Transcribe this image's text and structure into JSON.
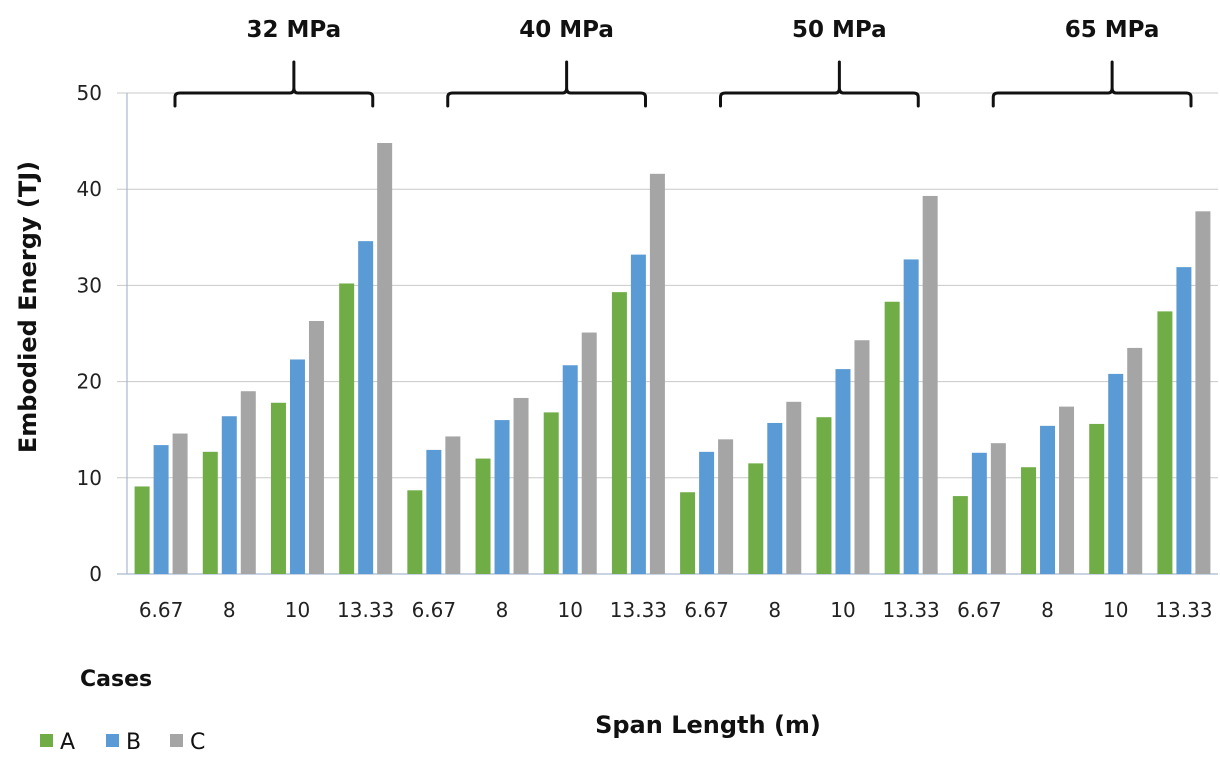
{
  "chart_data": {
    "type": "bar",
    "ylabel": "Embodied Energy (TJ)",
    "xlabel": "Span Length (m)",
    "ylim": [
      0,
      50
    ],
    "yticks": [
      0,
      10,
      20,
      30,
      40,
      50
    ],
    "grid": true,
    "legend_title": "Cases",
    "legend_position": "bottom-left",
    "group_labels": [
      "32 MPa",
      "40 MPa",
      "50 MPa",
      "65 MPa"
    ],
    "categories": [
      "6.67",
      "8",
      "10",
      "13.33"
    ],
    "series": [
      {
        "name": "A",
        "color": "#70ad47",
        "values": [
          [
            9.1,
            12.7,
            17.8,
            30.2
          ],
          [
            8.7,
            12.0,
            16.8,
            29.3
          ],
          [
            8.5,
            11.5,
            16.3,
            28.3
          ],
          [
            8.1,
            11.1,
            15.6,
            27.3
          ]
        ]
      },
      {
        "name": "B",
        "color": "#5b9bd5",
        "values": [
          [
            13.4,
            16.4,
            22.3,
            34.6
          ],
          [
            12.9,
            16.0,
            21.7,
            33.2
          ],
          [
            12.7,
            15.7,
            21.3,
            32.7
          ],
          [
            12.6,
            15.4,
            20.8,
            31.9
          ]
        ]
      },
      {
        "name": "C",
        "color": "#a5a5a5",
        "values": [
          [
            14.6,
            19.0,
            26.3,
            44.8
          ],
          [
            14.3,
            18.3,
            25.1,
            41.6
          ],
          [
            14.0,
            17.9,
            24.3,
            39.3
          ],
          [
            13.6,
            17.4,
            23.5,
            37.7
          ]
        ]
      }
    ]
  }
}
